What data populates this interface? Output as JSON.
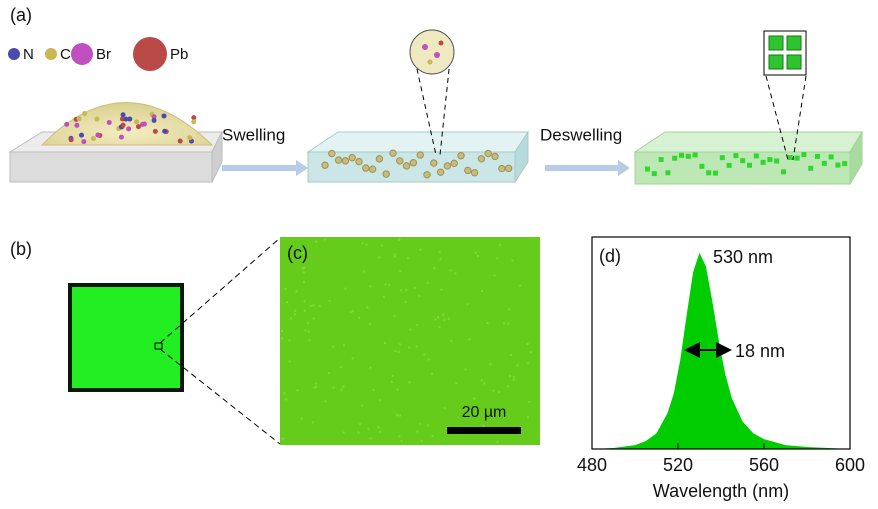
{
  "panels": {
    "a": {
      "label": "(a)",
      "legend": [
        "N",
        "C",
        "Br",
        "Pb"
      ],
      "steps": [
        "Swelling",
        "Deswelling"
      ]
    },
    "b": {
      "label": "(b)"
    },
    "c": {
      "label": "(c)",
      "scale_bar": "20 µm"
    }
  },
  "chart_data": {
    "type": "area",
    "panel_label": "(d)",
    "x_label": "Wavelength (nm)",
    "annotations": [
      "530 nm",
      "18 nm"
    ],
    "color": "#00cc00",
    "x": [
      480,
      490,
      500,
      505,
      510,
      515,
      518,
      521,
      524,
      527,
      530,
      533,
      536,
      539,
      542,
      545,
      550,
      555,
      560,
      570,
      580,
      590,
      600
    ],
    "values": [
      0,
      0.005,
      0.02,
      0.04,
      0.08,
      0.18,
      0.28,
      0.45,
      0.68,
      0.9,
      1.0,
      0.93,
      0.75,
      0.55,
      0.38,
      0.26,
      0.14,
      0.08,
      0.05,
      0.02,
      0.01,
      0.005,
      0
    ],
    "xlim": [
      480,
      600
    ],
    "xticks": [
      480,
      520,
      560,
      600
    ],
    "ylim": [
      0,
      1.08
    ]
  }
}
